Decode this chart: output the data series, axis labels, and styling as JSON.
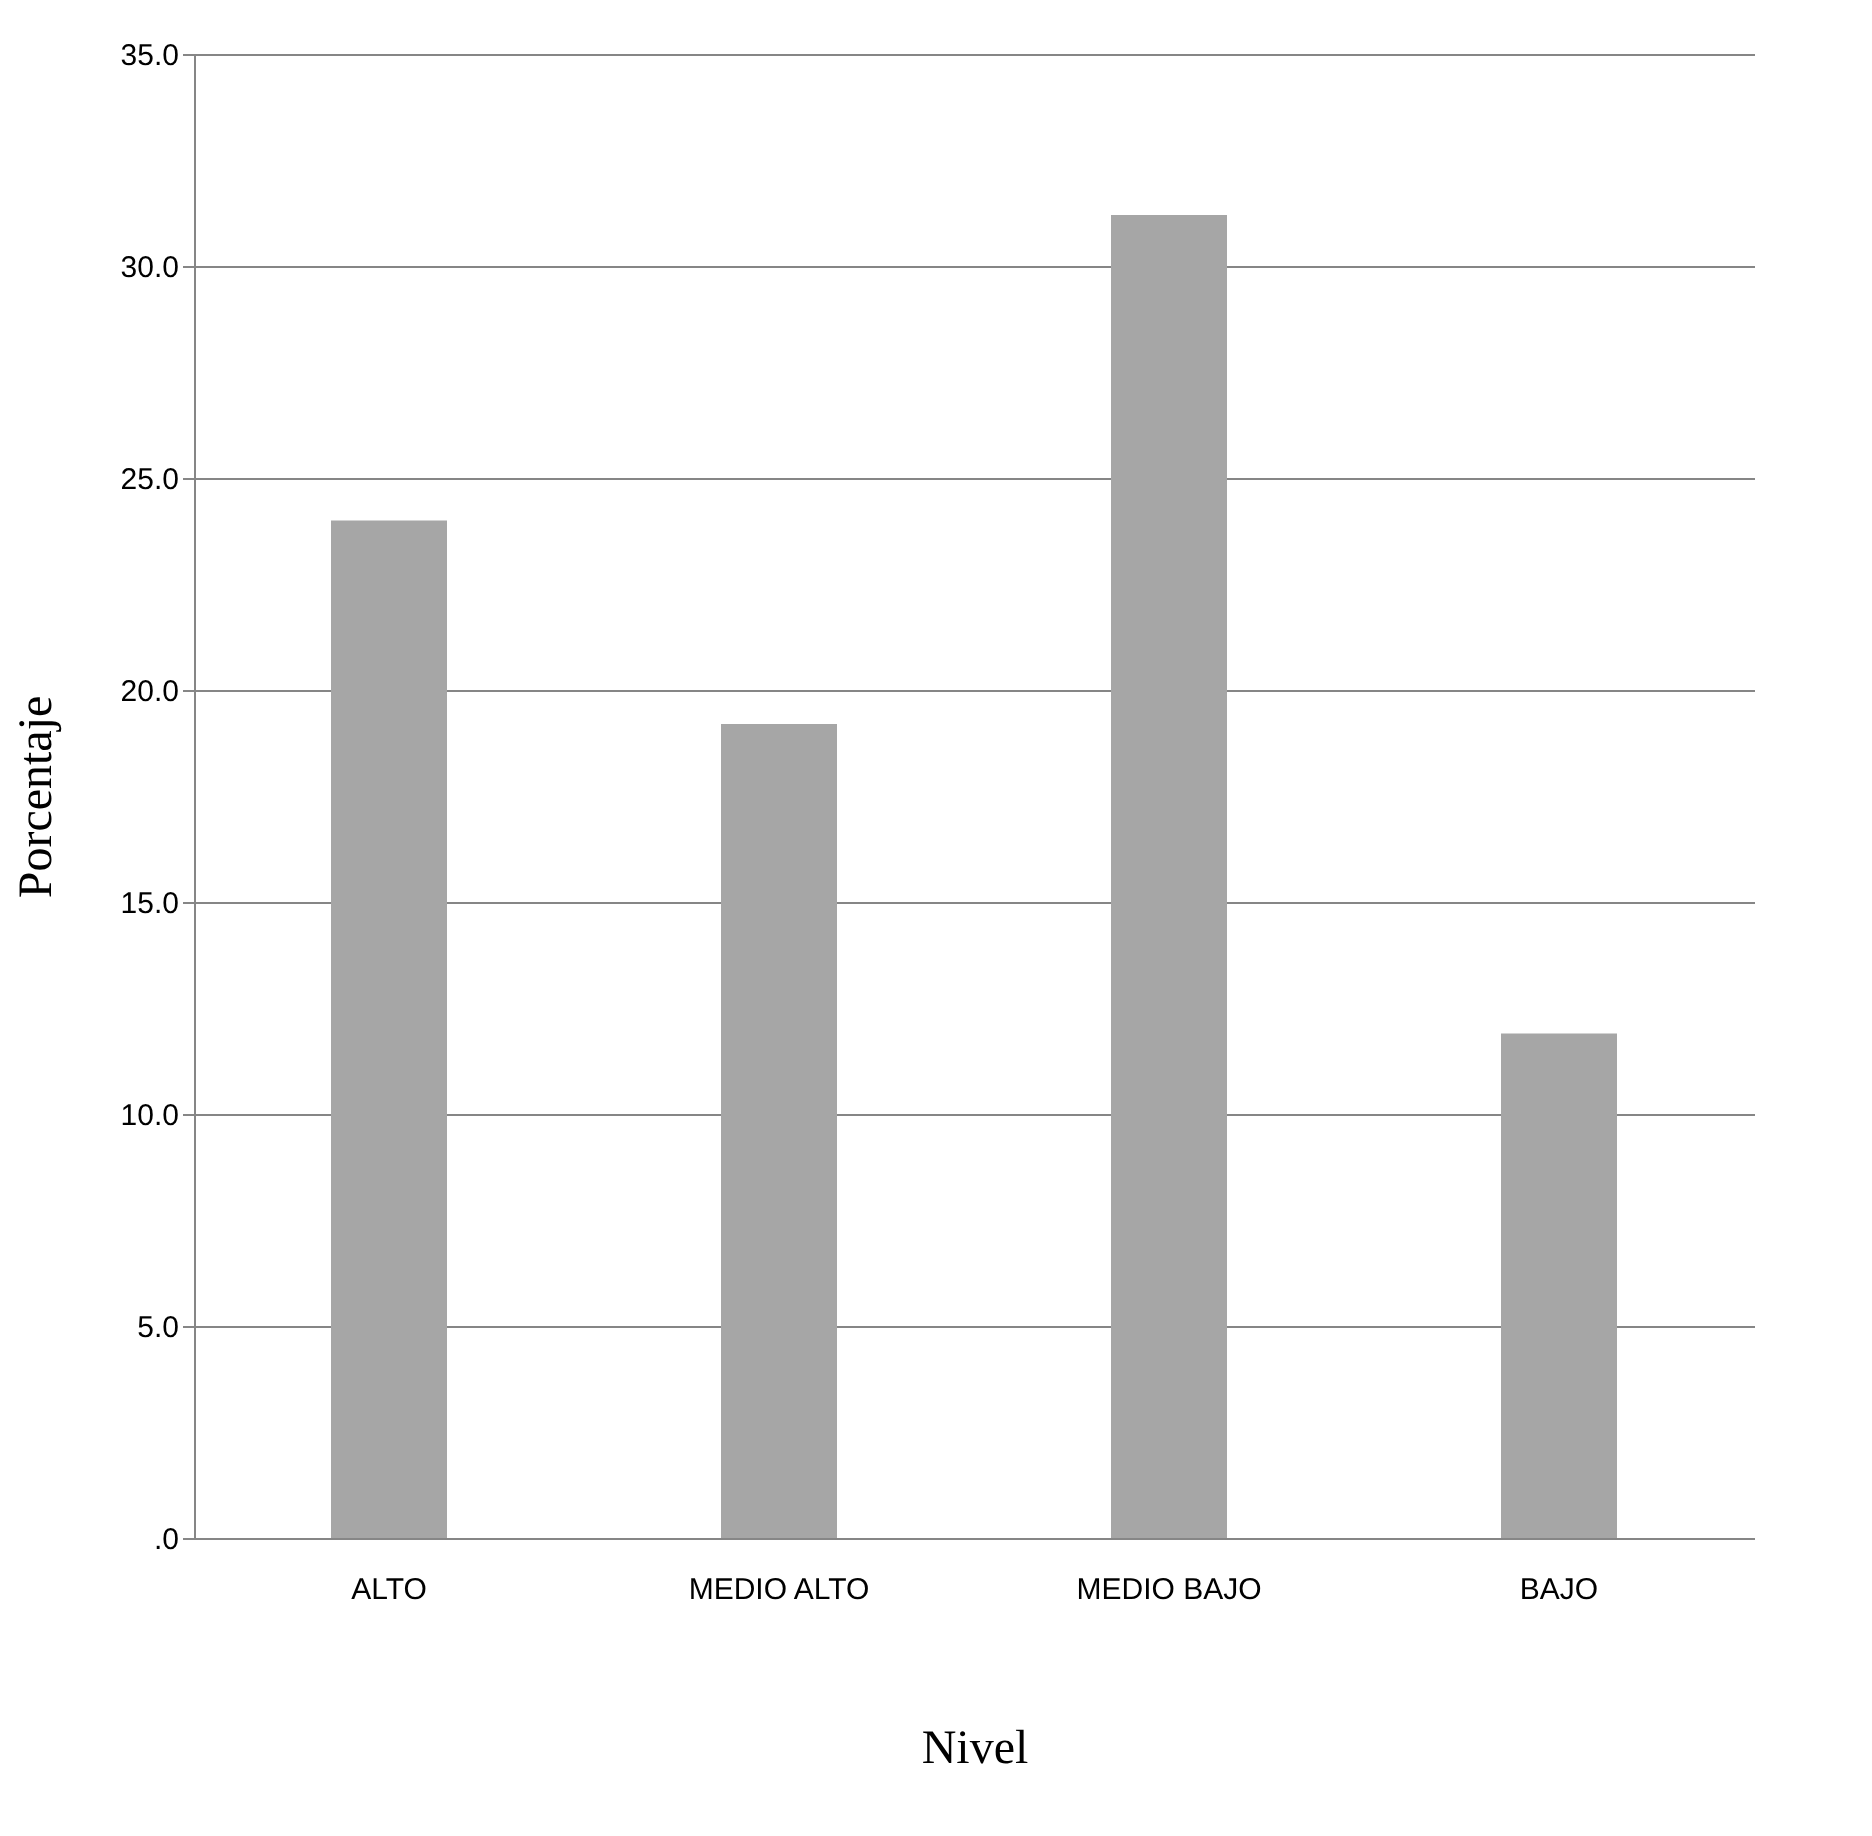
{
  "chart_data": {
    "type": "bar",
    "xlabel": "Nivel",
    "ylabel": "Porcentaje",
    "categories": [
      "ALTO",
      "MEDIO ALTO",
      "MEDIO BAJO",
      "BAJO"
    ],
    "values": [
      24.0,
      19.2,
      31.2,
      11.9
    ],
    "color": "#a6a6a6",
    "ylim": [
      0,
      35
    ],
    "yticks": [
      {
        "value": 0,
        "label": ".0"
      },
      {
        "value": 5,
        "label": "5.0"
      },
      {
        "value": 10,
        "label": "10.0"
      },
      {
        "value": 15,
        "label": "15.0"
      },
      {
        "value": 20,
        "label": "20.0"
      },
      {
        "value": 25,
        "label": "25.0"
      },
      {
        "value": 30,
        "label": "30.0"
      },
      {
        "value": 35,
        "label": "35.0"
      }
    ],
    "grid": "y"
  }
}
